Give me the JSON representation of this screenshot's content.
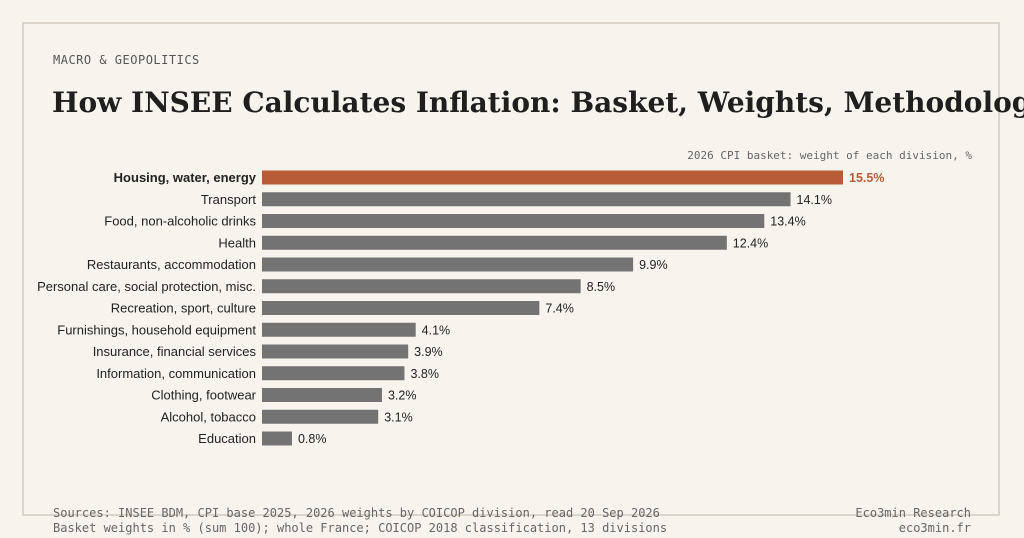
{
  "header": {
    "kicker": "MACRO & GEOPOLITICS",
    "title": "How INSEE Calculates Inflation: Basket, Weights, Methodology"
  },
  "chart_data": {
    "type": "bar",
    "orientation": "horizontal",
    "subtitle": "2026 CPI basket: weight of each division, %",
    "categories": [
      "Housing, water, energy",
      "Transport",
      "Food, non-alcoholic drinks",
      "Health",
      "Restaurants, accommodation",
      "Personal care, social protection, misc.",
      "Recreation, sport, culture",
      "Furnishings, household equipment",
      "Insurance, financial services",
      "Information, communication",
      "Clothing, footwear",
      "Alcohol, tobacco",
      "Education"
    ],
    "values": [
      15.5,
      14.1,
      13.4,
      12.4,
      9.9,
      8.5,
      7.4,
      4.1,
      3.9,
      3.8,
      3.2,
      3.1,
      0.8
    ],
    "value_labels": [
      "15.5%",
      "14.1%",
      "13.4%",
      "12.4%",
      "9.9%",
      "8.5%",
      "7.4%",
      "4.1%",
      "3.9%",
      "3.8%",
      "3.2%",
      "3.1%",
      "0.8%"
    ],
    "highlight_index": 0,
    "colors": {
      "highlight": "#b85c38",
      "default": "#737373"
    },
    "xlim": [
      0,
      15.5
    ],
    "grid": false,
    "legend": "none"
  },
  "footer": {
    "source_line1": "Sources: INSEE BDM, CPI base 2025, 2026 weights by COICOP division, read 20 Sep 2026",
    "source_line2": "Basket weights in % (sum 100); whole France; COICOP 2018 classification, 13 divisions",
    "brand": "Eco3min Research",
    "site": "eco3min.fr"
  }
}
